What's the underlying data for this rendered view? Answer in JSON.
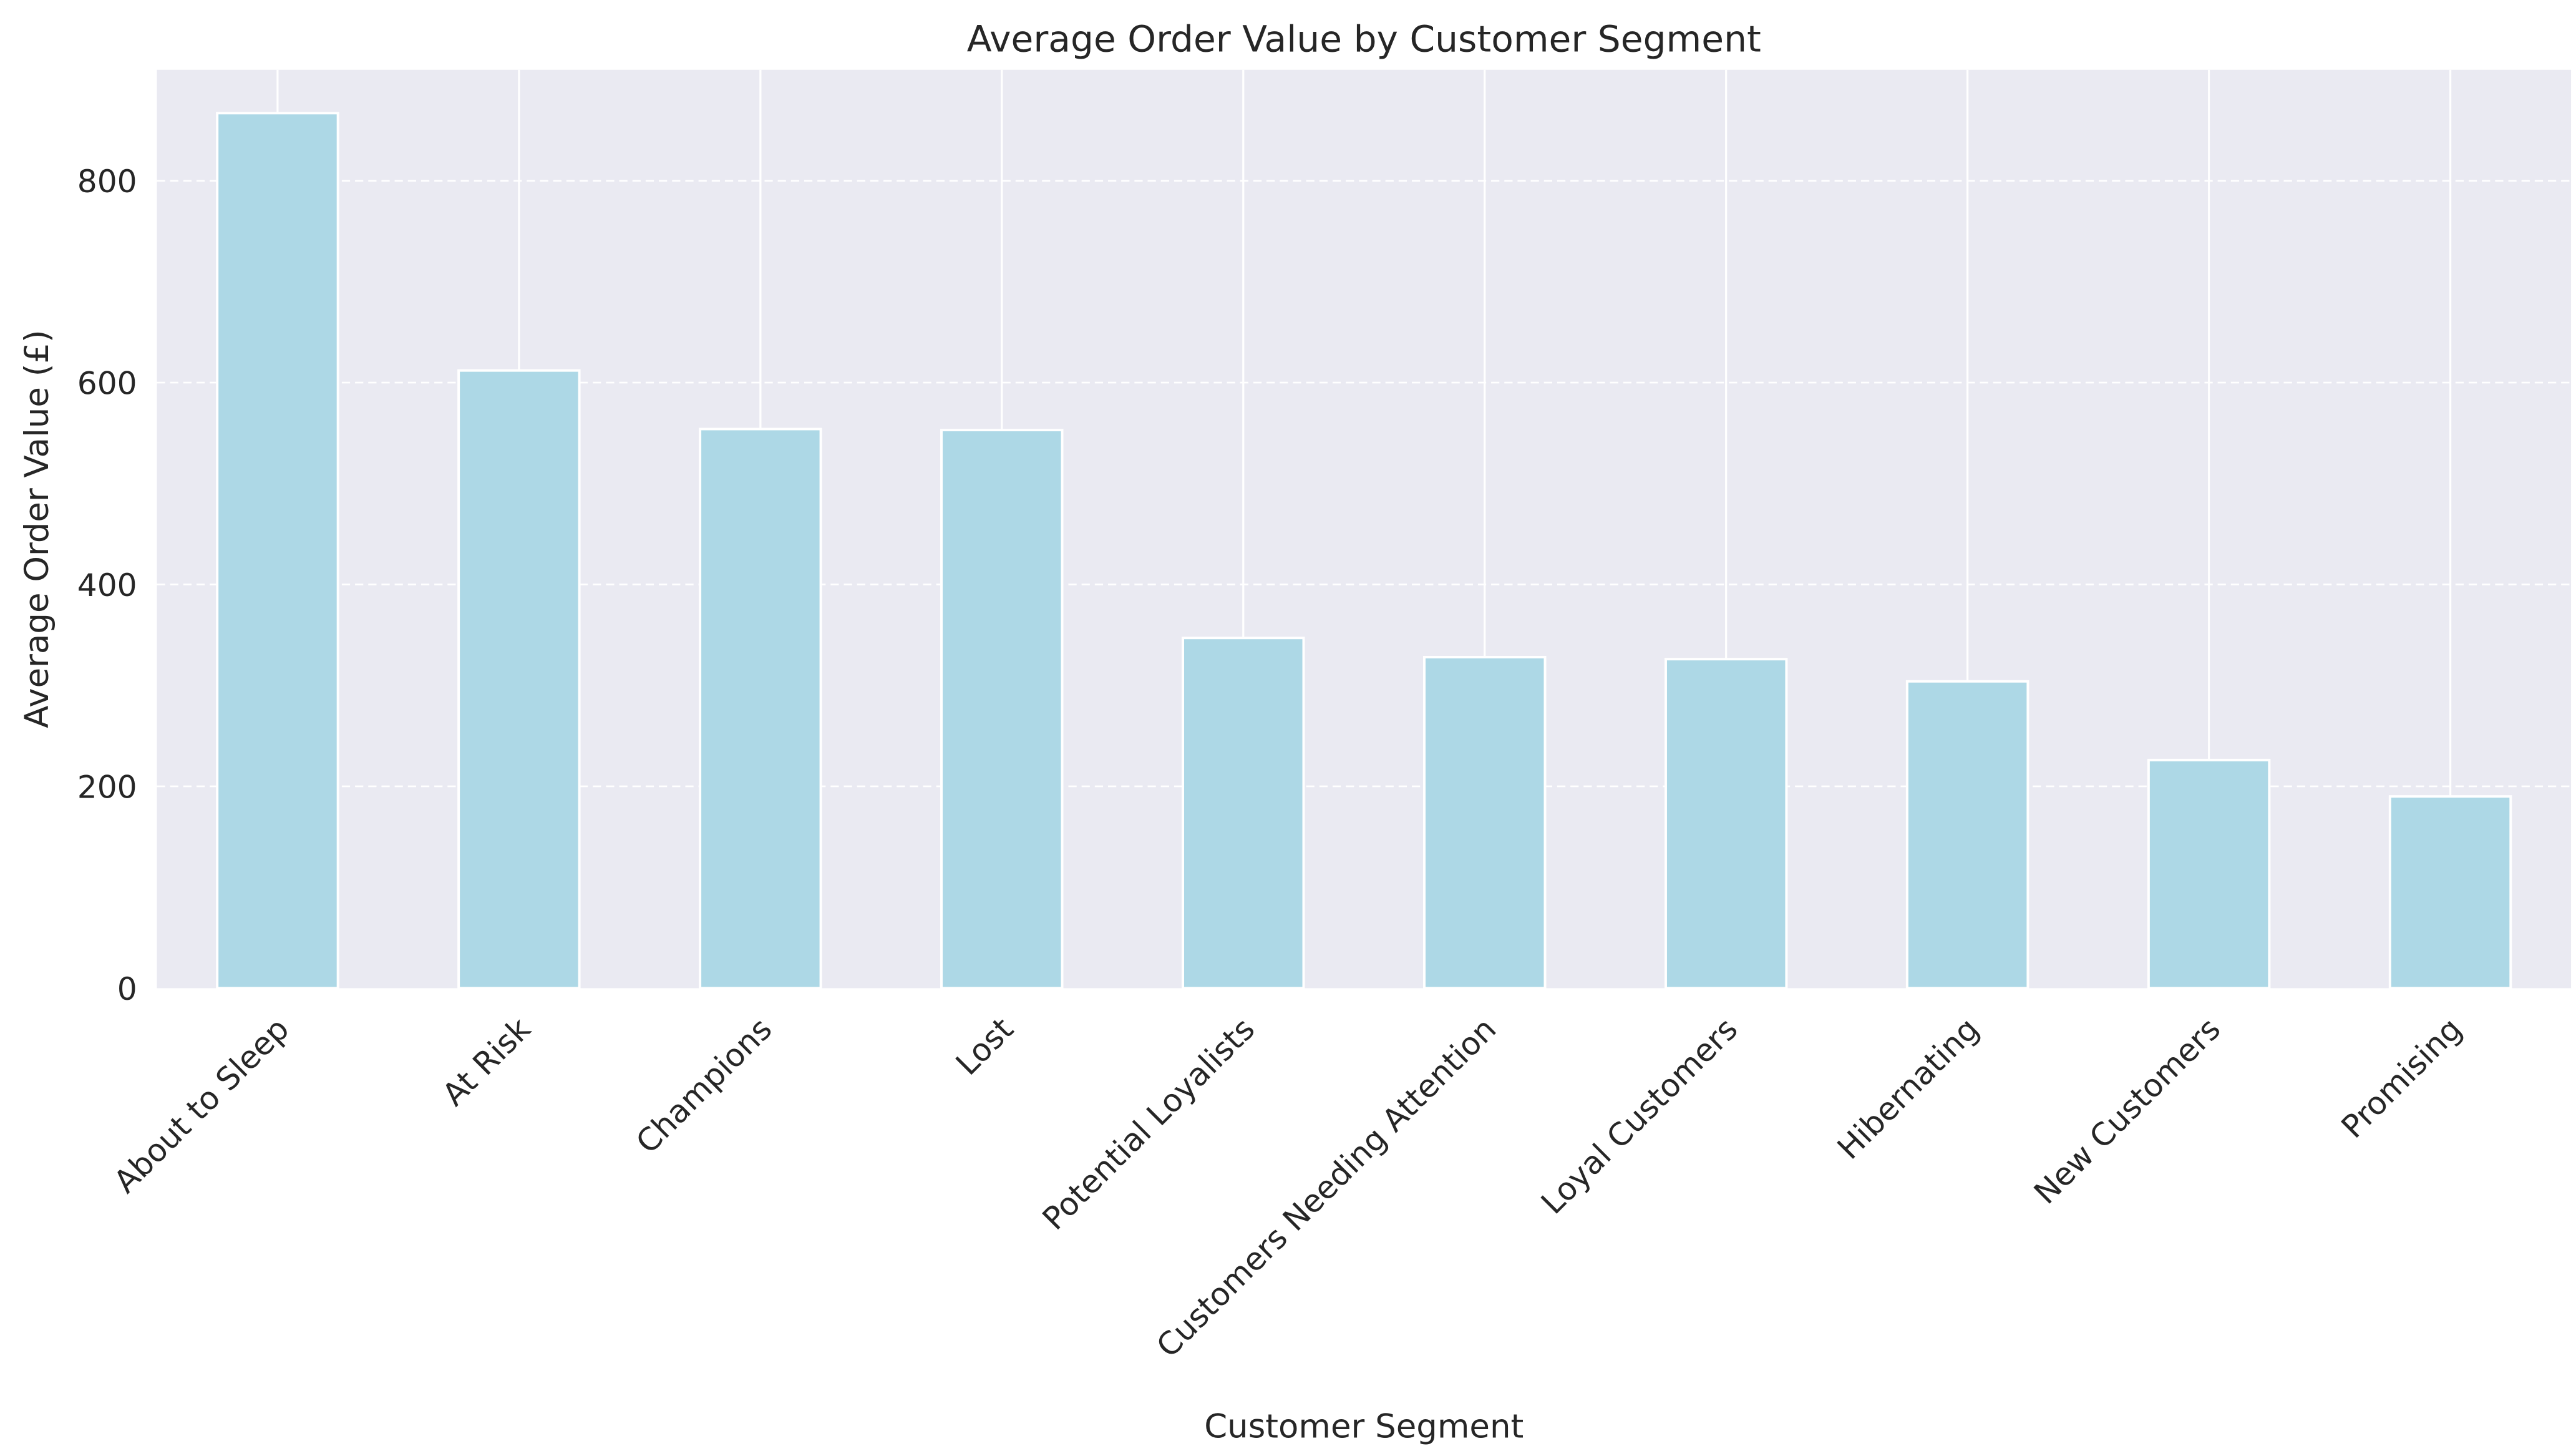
{
  "chart_data": {
    "type": "bar",
    "title": "Average Order Value by Customer Segment",
    "xlabel": "Customer Segment",
    "ylabel": "Average Order Value (£)",
    "categories": [
      "About to Sleep",
      "At Risk",
      "Champions",
      "Lost",
      "Potential Loyalists",
      "Customers Needing Attention",
      "Loyal Customers",
      "Hibernating",
      "New Customers",
      "Promising"
    ],
    "values": [
      867,
      612,
      554,
      553,
      347,
      328,
      326,
      304,
      226,
      190
    ],
    "ylim": [
      0,
      910
    ],
    "yticks": [
      0,
      200,
      400,
      600,
      800
    ],
    "grid": true,
    "bar_color": "#add8e6",
    "background_color": "#eaeaf2"
  }
}
